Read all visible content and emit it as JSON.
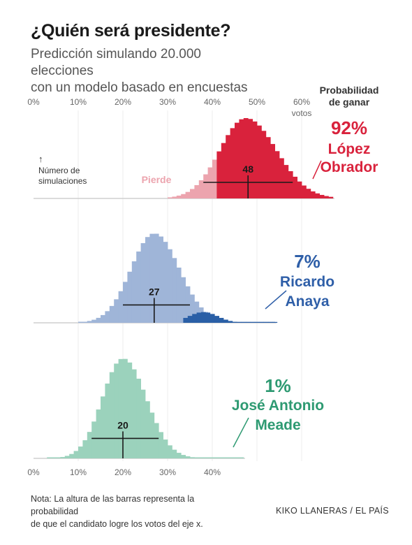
{
  "header": {
    "title": "¿Quién será presidente?",
    "subtitle_line1": "Predicción simulando 20.000 elecciones",
    "subtitle_line2": "con un modelo basado en encuestas"
  },
  "footer": {
    "note_line1": "Nota: La altura de las barras representa la probabilidad",
    "note_line2": "de que el candidato logre los votos del eje x.",
    "credit": "KIKO LLANERAS / EL PAÍS"
  },
  "colors": {
    "obrador": "#d9223c",
    "obrador_light": "#eca4ae",
    "anaya": "#9fb5d8",
    "anaya_win": "#2a5fa6",
    "anaya_text": "#2f5fa8",
    "meade": "#9bd2bc",
    "meade_text": "#2e9a72"
  },
  "chart_data": {
    "type": "bar",
    "x_axis": {
      "ticks": [
        0,
        10,
        20,
        30,
        40,
        50,
        60
      ],
      "top_tick_labels": [
        "0%",
        "10%",
        "20%",
        "30%",
        "40%",
        "50%",
        "60%"
      ],
      "bottom_tick_labels": [
        "0%",
        "10%",
        "20%",
        "30%",
        "40%"
      ],
      "unit_label": "votos"
    },
    "y_axis_label_line1": "Número de",
    "y_axis_label_line2": "simulaciones",
    "prob_header_line1": "Probabilidad",
    "prob_header_line2": "de ganar",
    "annotation_pierde": "Pierde",
    "series": [
      {
        "name": "López Obrador",
        "name_line1": "López",
        "name_line2": "Obrador",
        "probability": "92%",
        "median": 48,
        "median_label": "48",
        "interval": [
          38,
          58
        ],
        "hist_range": [
          30,
          67
        ],
        "peak": 47.5,
        "spread_left": 5.8,
        "spread_right": 6.8,
        "lose_below": 41.5
      },
      {
        "name": "Ricardo Anaya",
        "name_line1": "Ricardo",
        "name_line2": "Anaya",
        "probability": "7%",
        "median": 27,
        "median_label": "27",
        "interval": [
          20,
          35
        ],
        "hist_range": [
          10,
          54
        ],
        "peak": 27,
        "spread_left": 5.2,
        "spread_right": 5.6,
        "win_above": 33.5,
        "win_peak": 38,
        "win_height": 0.12
      },
      {
        "name": "José Antonio Meade",
        "name_line1": "José Antonio",
        "name_line2": "Meade",
        "probability": "1%",
        "median": 20,
        "median_label": "20",
        "interval": [
          13,
          28
        ],
        "hist_range": [
          3,
          47
        ],
        "peak": 20,
        "spread_left": 4.6,
        "spread_right": 5.2
      }
    ]
  }
}
